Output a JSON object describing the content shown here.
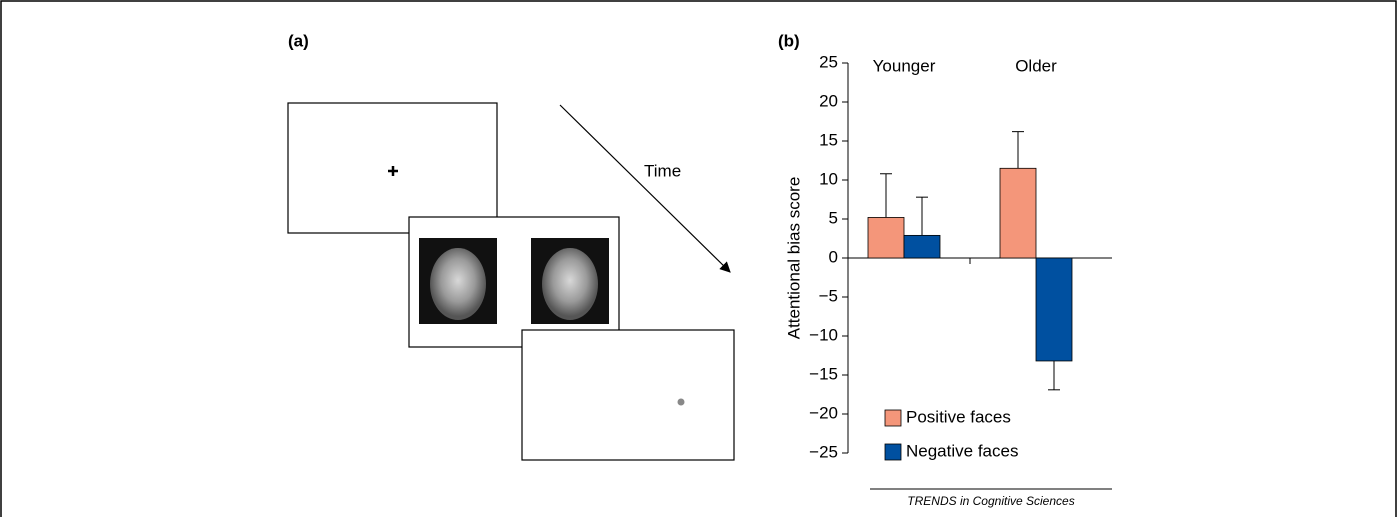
{
  "panel_a": {
    "label": "(a)",
    "time_label": "Time"
  },
  "panel_b": {
    "label": "(b)"
  },
  "source": "TRENDS in Cognitive Sciences",
  "chart_data": {
    "type": "bar",
    "ylabel": "Attentional bias score",
    "categories": [
      "Younger",
      "Older"
    ],
    "series": [
      {
        "name": "Positive faces",
        "color": "#f4967a",
        "values": [
          5.2,
          11.5
        ],
        "errors": [
          5.6,
          4.7
        ]
      },
      {
        "name": "Negative faces",
        "color": "#0050a0",
        "values": [
          2.9,
          -13.2
        ],
        "errors": [
          4.9,
          3.7
        ]
      }
    ],
    "ylim": [
      -25,
      25
    ],
    "yticks": [
      {
        "value": -25,
        "label": "−25"
      },
      {
        "value": -20,
        "label": "−20"
      },
      {
        "value": -15,
        "label": "−15"
      },
      {
        "value": -10,
        "label": "−10"
      },
      {
        "value": -5,
        "label": "−5"
      },
      0,
      5,
      10,
      15,
      20,
      25
    ],
    "legend": "lower left"
  }
}
